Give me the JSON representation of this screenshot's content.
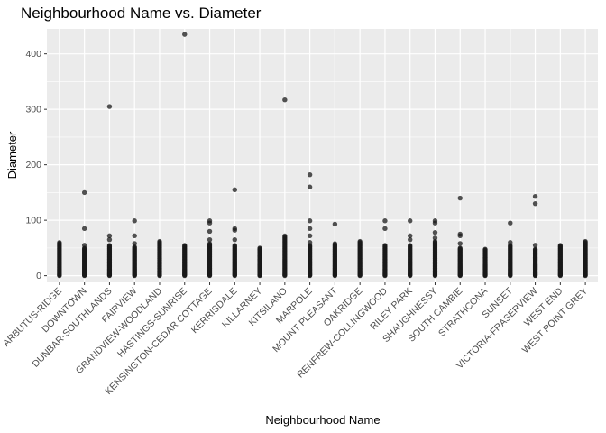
{
  "chart_data": {
    "type": "scatter",
    "title": "Neighbourhood Name vs. Diameter",
    "xlabel": "Neighbourhood Name",
    "ylabel": "Diameter",
    "ylim": [
      -12,
      445
    ],
    "y_ticks": [
      0,
      100,
      200,
      300,
      400
    ],
    "grid": true,
    "legend": "none",
    "colors": {
      "panel": "#EBEBEB",
      "grid": "#FFFFFF",
      "point": "#1a1a1a",
      "tick": "#333333"
    },
    "categories": [
      "ARBUTUS-RIDGE",
      "DOWNTOWN",
      "DUNBAR-SOUTHLANDS",
      "FAIRVIEW",
      "GRANDVIEW-WOODLAND",
      "HASTINGS-SUNRISE",
      "KENSINGTON-CEDAR COTTAGE",
      "KERRISDALE",
      "KILLARNEY",
      "KITSILANO",
      "MARPOLE",
      "MOUNT PLEASANT",
      "OAKRIDGE",
      "RENFREW-COLLINGWOOD",
      "RILEY PARK",
      "SHAUGHNESSY",
      "SOUTH CAMBIE",
      "STRATHCONA",
      "SUNSET",
      "VICTORIA-FRASERVIEW",
      "WEST END",
      "WEST POINT GREY"
    ],
    "series": [
      {
        "range": [
          0,
          60
        ],
        "outliers": []
      },
      {
        "range": [
          0,
          50
        ],
        "outliers": [
          55,
          85,
          150
        ]
      },
      {
        "range": [
          0,
          55
        ],
        "outliers": [
          65,
          72,
          305
        ]
      },
      {
        "range": [
          0,
          52
        ],
        "outliers": [
          58,
          72,
          99
        ]
      },
      {
        "range": [
          0,
          62
        ],
        "outliers": []
      },
      {
        "range": [
          0,
          55
        ],
        "outliers": [
          435
        ]
      },
      {
        "range": [
          0,
          58
        ],
        "outliers": [
          65,
          80,
          95,
          99
        ]
      },
      {
        "range": [
          0,
          55
        ],
        "outliers": [
          65,
          82,
          85,
          155
        ]
      },
      {
        "range": [
          0,
          50
        ],
        "outliers": []
      },
      {
        "range": [
          0,
          72
        ],
        "outliers": [
          317
        ]
      },
      {
        "range": [
          0,
          55
        ],
        "outliers": [
          60,
          72,
          85,
          99,
          160,
          182
        ]
      },
      {
        "range": [
          0,
          58
        ],
        "outliers": [
          93
        ]
      },
      {
        "range": [
          0,
          62
        ],
        "outliers": []
      },
      {
        "range": [
          0,
          55
        ],
        "outliers": [
          85,
          99
        ]
      },
      {
        "range": [
          0,
          55
        ],
        "outliers": [
          65,
          72,
          99
        ]
      },
      {
        "range": [
          0,
          62
        ],
        "outliers": [
          68,
          78,
          95,
          99
        ]
      },
      {
        "range": [
          0,
          50
        ],
        "outliers": [
          58,
          72,
          75,
          140
        ]
      },
      {
        "range": [
          0,
          48
        ],
        "outliers": []
      },
      {
        "range": [
          0,
          55
        ],
        "outliers": [
          60,
          95
        ]
      },
      {
        "range": [
          0,
          48
        ],
        "outliers": [
          55,
          130,
          143
        ]
      },
      {
        "range": [
          0,
          55
        ],
        "outliers": []
      },
      {
        "range": [
          0,
          62
        ],
        "outliers": []
      }
    ]
  }
}
